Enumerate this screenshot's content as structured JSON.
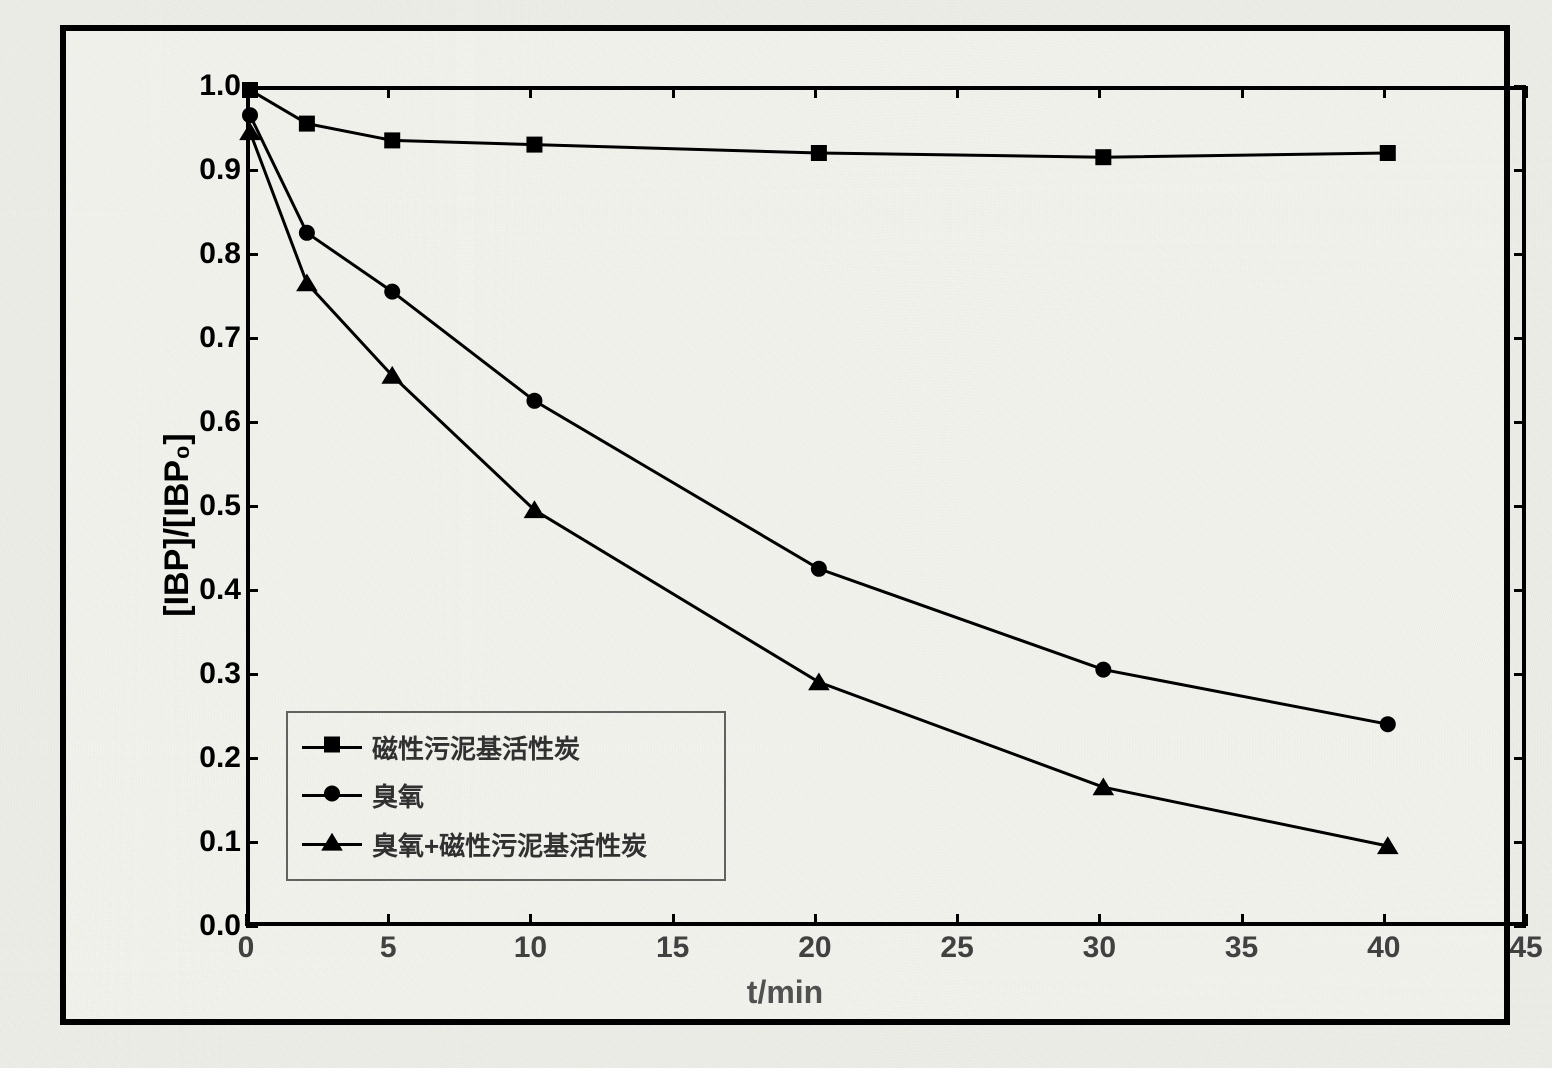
{
  "chart": {
    "type": "line",
    "background_color": "#fafaf5",
    "page_background": "#f5f5f0",
    "frame_border_color": "#000000",
    "frame_border_width": 6,
    "plot_border_width": 4,
    "axes": {
      "x": {
        "label": "t/min",
        "min": 0,
        "max": 45,
        "ticks": [
          0,
          5,
          10,
          15,
          20,
          25,
          30,
          35,
          40,
          45
        ],
        "label_fontsize": 32,
        "tick_fontsize": 30,
        "tick_color": "#444444"
      },
      "y": {
        "label": "[IBP]/[IBP₀]",
        "min": 0.0,
        "max": 1.0,
        "ticks": [
          0.0,
          0.1,
          0.2,
          0.3,
          0.4,
          0.5,
          0.6,
          0.7,
          0.8,
          0.9,
          1.0
        ],
        "label_fontsize": 34,
        "tick_fontsize": 30
      }
    },
    "series": [
      {
        "id": "magnetic-sludge-carbon",
        "label": "磁性污泥基活性炭",
        "marker": "square",
        "marker_size": 16,
        "color": "#000000",
        "line_width": 3,
        "x": [
          0,
          2,
          5,
          10,
          20,
          30,
          40
        ],
        "y": [
          1.0,
          0.96,
          0.94,
          0.935,
          0.925,
          0.92,
          0.925
        ]
      },
      {
        "id": "ozone",
        "label": "臭氧",
        "marker": "circle",
        "marker_size": 16,
        "color": "#000000",
        "line_width": 3,
        "x": [
          0,
          2,
          5,
          10,
          20,
          30,
          40
        ],
        "y": [
          0.97,
          0.83,
          0.76,
          0.63,
          0.43,
          0.31,
          0.245
        ]
      },
      {
        "id": "ozone-plus-carbon",
        "label": "臭氧+磁性污泥基活性炭",
        "marker": "triangle",
        "marker_size": 18,
        "color": "#000000",
        "line_width": 3,
        "x": [
          0,
          2,
          5,
          10,
          20,
          30,
          40
        ],
        "y": [
          0.95,
          0.77,
          0.66,
          0.5,
          0.295,
          0.17,
          0.1
        ]
      }
    ],
    "legend": {
      "border_color": "#666666",
      "border_width": 2,
      "background": "rgba(250,250,245,0.6)",
      "fontsize": 26,
      "text_color": "#333333"
    }
  }
}
